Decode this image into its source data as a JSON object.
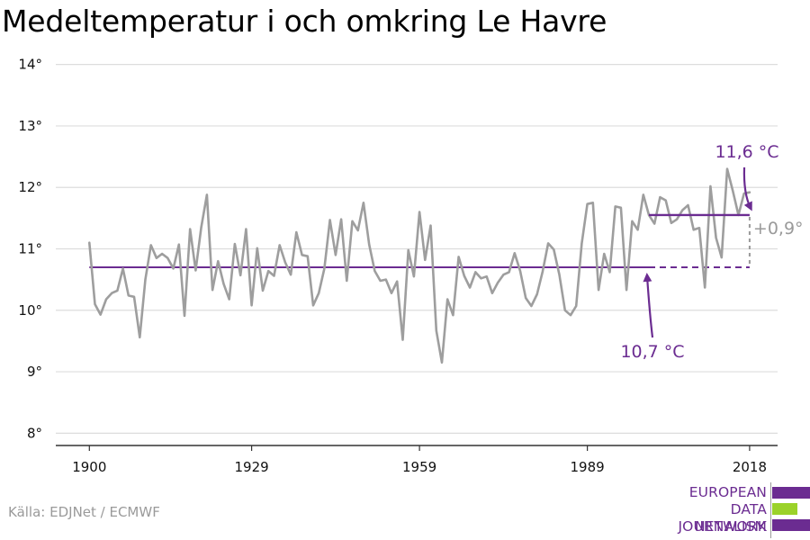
{
  "header": {
    "title": "Medeltemperatur i och omkring Le Havre"
  },
  "footer": {
    "source": "Källa: EDJNet / ECMWF"
  },
  "logo": {
    "line1": "EUROPEAN",
    "line2": "DATA JOURNALISM",
    "line3": "NETWORK",
    "colors": [
      "#6b2c91",
      "#9bd22a",
      "#6b2c91"
    ]
  },
  "colors": {
    "series": "#9e9e9e",
    "purple": "#6b2c91",
    "grid": "#dddddd",
    "gray_text": "#9a9a9a"
  },
  "chart_data": {
    "type": "line",
    "x": [
      1900,
      1901,
      1902,
      1903,
      1904,
      1905,
      1906,
      1907,
      1908,
      1909,
      1910,
      1911,
      1912,
      1913,
      1914,
      1915,
      1916,
      1917,
      1918,
      1919,
      1920,
      1921,
      1922,
      1923,
      1924,
      1925,
      1926,
      1927,
      1928,
      1929,
      1930,
      1931,
      1932,
      1933,
      1934,
      1935,
      1936,
      1937,
      1938,
      1939,
      1940,
      1941,
      1942,
      1943,
      1944,
      1945,
      1946,
      1947,
      1948,
      1949,
      1950,
      1951,
      1952,
      1953,
      1954,
      1955,
      1956,
      1957,
      1958,
      1959,
      1960,
      1961,
      1962,
      1963,
      1964,
      1965,
      1966,
      1967,
      1968,
      1969,
      1970,
      1971,
      1972,
      1973,
      1974,
      1975,
      1976,
      1977,
      1978,
      1979,
      1980,
      1981,
      1982,
      1983,
      1984,
      1985,
      1986,
      1987,
      1988,
      1989,
      1990,
      1991,
      1992,
      1993,
      1994,
      1995,
      1996,
      1997,
      1998,
      1999,
      2000,
      2001,
      2002,
      2003,
      2004,
      2005,
      2006,
      2007,
      2008,
      2009,
      2010,
      2011,
      2012,
      2013,
      2014,
      2015,
      2016,
      2017,
      2018
    ],
    "series": [
      {
        "values": [
          11.1,
          10.1,
          9.93,
          10.18,
          10.28,
          10.32,
          10.68,
          10.24,
          10.22,
          9.56,
          10.5,
          11.06,
          10.85,
          10.92,
          10.85,
          10.68,
          11.07,
          9.91,
          11.32,
          10.65,
          11.35,
          11.88,
          10.33,
          10.8,
          10.43,
          10.18,
          11.08,
          10.57,
          11.32,
          10.08,
          11.01,
          10.32,
          10.64,
          10.56,
          11.06,
          10.78,
          10.58,
          11.27,
          10.9,
          10.88,
          10.08,
          10.28,
          10.68,
          11.47,
          10.9,
          11.48,
          10.48,
          11.45,
          11.3,
          11.75,
          11.07,
          10.64,
          10.48,
          10.5,
          10.28,
          10.47,
          9.52,
          10.98,
          10.55,
          11.6,
          10.82,
          11.38,
          9.67,
          9.15,
          10.18,
          9.92,
          10.87,
          10.56,
          10.37,
          10.62,
          10.52,
          10.55,
          10.28,
          10.45,
          10.58,
          10.62,
          10.93,
          10.64,
          10.2,
          10.07,
          10.26,
          10.63,
          11.09,
          10.99,
          10.58,
          10.0,
          9.92,
          10.07,
          11.09,
          11.73,
          11.75,
          10.33,
          10.92,
          10.62,
          11.69,
          11.67,
          10.33,
          11.45,
          11.31,
          11.88,
          11.55,
          11.41,
          11.84,
          11.79,
          11.42,
          11.48,
          11.63,
          11.71,
          11.31,
          11.34,
          10.37,
          12.02,
          11.18,
          10.86,
          12.3,
          11.94,
          11.55,
          11.9,
          11.92
        ]
      }
    ],
    "baseline": {
      "label": "10,7 °C",
      "value": 10.7,
      "x_start": 1900,
      "x_solid_end": 2000,
      "x_end": 2018
    },
    "recent_mean": {
      "label": "11,6 °C",
      "value": 11.55,
      "x_start": 2000,
      "x_end": 2018
    },
    "difference": {
      "label": "+0,9°"
    },
    "y_ticks": [
      8,
      9,
      10,
      11,
      12,
      13,
      14
    ],
    "y_tick_labels": [
      "8°",
      "9°",
      "10°",
      "11°",
      "12°",
      "13°",
      "14°"
    ],
    "x_ticks": [
      1900,
      1929,
      1959,
      1989,
      2018
    ],
    "x_tick_labels": [
      "1900",
      "1929",
      "1959",
      "1989",
      "2018"
    ],
    "xlim": [
      1894,
      2023
    ],
    "ylim": [
      7.8,
      14.2
    ],
    "grid": true
  }
}
